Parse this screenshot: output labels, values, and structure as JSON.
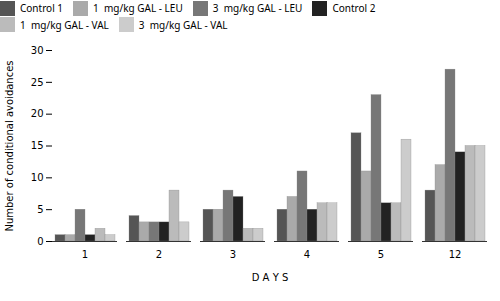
{
  "chart_data": {
    "type": "bar",
    "xlabel": "D A Y S",
    "ylabel": "Number of conditional avoidances",
    "categories": [
      "1",
      "2",
      "3",
      "4",
      "5",
      "12"
    ],
    "series": [
      {
        "name": "Control 1",
        "color": "#555555",
        "values": [
          1,
          4,
          5,
          5,
          17,
          8
        ]
      },
      {
        "name": "1  mg/kg GAL - LEU",
        "color": "#aaaaaa",
        "values": [
          1,
          3,
          5,
          7,
          11,
          12
        ]
      },
      {
        "name": "3  mg/kg GAL - LEU",
        "color": "#777777",
        "values": [
          5,
          3,
          8,
          11,
          23,
          27
        ]
      },
      {
        "name": "Control 2",
        "color": "#222222",
        "values": [
          1,
          3,
          7,
          5,
          6,
          14
        ]
      },
      {
        "name": "1  mg/kg GAL - VAL",
        "color": "#bbbbbb",
        "values": [
          2,
          8,
          2,
          6,
          6,
          15
        ]
      },
      {
        "name": "3  mg/kg GAL - VAL",
        "color": "#cccccc",
        "values": [
          1,
          3,
          2,
          6,
          16,
          15
        ]
      }
    ],
    "ylim": [
      0,
      30
    ],
    "yticks": [
      0,
      5,
      10,
      15,
      20,
      25,
      30
    ],
    "grid": false,
    "legend": "top"
  }
}
